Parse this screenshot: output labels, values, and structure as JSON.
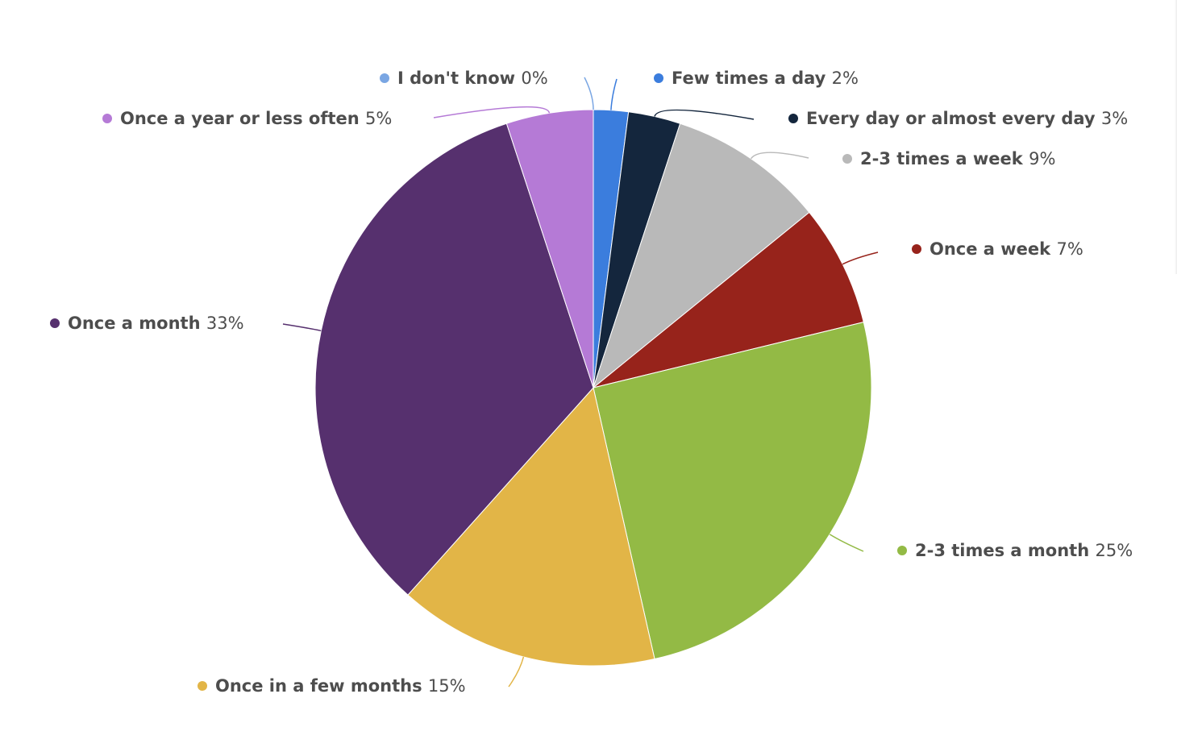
{
  "chart_data": {
    "type": "pie",
    "start_angle_deg": 0,
    "slices": [
      {
        "label": "I don't know",
        "value": 0,
        "value_label": "0%",
        "color": "#7aa6e3"
      },
      {
        "label": "Few times a day",
        "value": 2,
        "value_label": "2%",
        "color": "#3b7ddd"
      },
      {
        "label": "Every day or almost every day",
        "value": 3,
        "value_label": "3%",
        "color": "#14263d"
      },
      {
        "label": "2-3 times a week",
        "value": 9,
        "value_label": "9%",
        "color": "#b9b9b9"
      },
      {
        "label": "Once a week",
        "value": 7,
        "value_label": "7%",
        "color": "#97231b"
      },
      {
        "label": "2-3 times a month",
        "value": 25,
        "value_label": "25%",
        "color": "#93ba45"
      },
      {
        "label": "Once in a few months",
        "value": 15,
        "value_label": "15%",
        "color": "#e2b547"
      },
      {
        "label": "Once a month",
        "value": 33,
        "value_label": "33%",
        "color": "#56306e"
      },
      {
        "label": "Once a year or less often",
        "value": 5,
        "value_label": "5%",
        "color": "#b57ad6"
      }
    ]
  }
}
